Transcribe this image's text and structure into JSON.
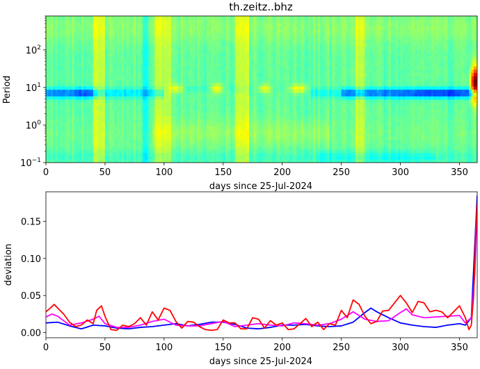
{
  "chart_data": [
    {
      "type": "heatmap",
      "title": "th.zeitz..bhz",
      "xlabel": "days since 25-Jul-2024",
      "ylabel": "Period",
      "xlim": [
        0,
        365
      ],
      "ylim": [
        0.1,
        800
      ],
      "y_scale": "log",
      "x_ticks": [
        0,
        50,
        100,
        150,
        200,
        250,
        300,
        350
      ],
      "y_ticks": [
        {
          "value": 0.1,
          "label": "10",
          "exp": "−1"
        },
        {
          "value": 1,
          "label": "10",
          "exp": "0"
        },
        {
          "value": 10,
          "label": "10",
          "exp": "1"
        },
        {
          "value": 100,
          "label": "10",
          "exp": "2"
        }
      ],
      "colormap": "jet",
      "features": [
        {
          "name": "low band",
          "period": 7,
          "days": [
            [
              0,
              45
            ],
            [
              250,
              365
            ]
          ],
          "level": "low"
        },
        {
          "name": "high bands",
          "period": 10,
          "days": [
            [
              105,
              115
            ],
            [
              140,
              150
            ],
            [
              180,
              190
            ],
            [
              205,
              220
            ]
          ],
          "level": "high"
        },
        {
          "name": "high spike",
          "period": 10,
          "days": [
            [
              360,
              365
            ]
          ],
          "level": "max"
        }
      ]
    },
    {
      "type": "line",
      "title": "",
      "xlabel": "days since 25-Jul-2024",
      "ylabel": "deviation",
      "xlim": [
        0,
        365
      ],
      "ylim": [
        -0.007,
        0.19
      ],
      "x_ticks": [
        0,
        50,
        100,
        150,
        200,
        250,
        300,
        350
      ],
      "y_ticks": [
        0.0,
        0.05,
        0.1,
        0.15
      ],
      "grid": false,
      "legend": "none",
      "series": [
        {
          "color": "#0000ff",
          "x": [
            0,
            10,
            20,
            30,
            40,
            50,
            60,
            70,
            80,
            90,
            100,
            110,
            120,
            130,
            140,
            150,
            160,
            170,
            180,
            190,
            200,
            210,
            220,
            230,
            240,
            250,
            260,
            270,
            275,
            280,
            290,
            300,
            310,
            320,
            330,
            340,
            350,
            355,
            360,
            363,
            365
          ],
          "y": [
            0.013,
            0.014,
            0.009,
            0.005,
            0.01,
            0.009,
            0.006,
            0.005,
            0.007,
            0.008,
            0.01,
            0.012,
            0.009,
            0.011,
            0.014,
            0.014,
            0.011,
            0.006,
            0.005,
            0.007,
            0.01,
            0.01,
            0.011,
            0.009,
            0.008,
            0.009,
            0.014,
            0.027,
            0.033,
            0.028,
            0.02,
            0.013,
            0.01,
            0.008,
            0.007,
            0.01,
            0.012,
            0.01,
            0.02,
            0.12,
            0.185
          ]
        },
        {
          "color": "#ff00ff",
          "x": [
            0,
            5,
            10,
            20,
            30,
            40,
            45,
            50,
            60,
            70,
            80,
            90,
            100,
            110,
            120,
            130,
            140,
            150,
            160,
            170,
            180,
            190,
            200,
            210,
            220,
            230,
            240,
            250,
            260,
            270,
            280,
            290,
            300,
            305,
            310,
            320,
            330,
            340,
            350,
            355,
            360,
            363,
            365
          ],
          "y": [
            0.021,
            0.025,
            0.022,
            0.01,
            0.013,
            0.018,
            0.022,
            0.012,
            0.007,
            0.007,
            0.01,
            0.015,
            0.018,
            0.01,
            0.009,
            0.009,
            0.012,
            0.015,
            0.008,
            0.01,
            0.012,
            0.01,
            0.009,
            0.013,
            0.012,
            0.01,
            0.012,
            0.018,
            0.028,
            0.018,
            0.015,
            0.016,
            0.027,
            0.032,
            0.024,
            0.02,
            0.021,
            0.022,
            0.023,
            0.013,
            0.02,
            0.08,
            0.17
          ]
        },
        {
          "color": "#ff0000",
          "x": [
            0,
            3,
            7,
            10,
            15,
            20,
            25,
            30,
            35,
            40,
            43,
            47,
            50,
            55,
            60,
            65,
            70,
            75,
            80,
            85,
            90,
            95,
            100,
            105,
            110,
            115,
            120,
            125,
            130,
            135,
            140,
            145,
            150,
            155,
            160,
            165,
            170,
            175,
            180,
            185,
            190,
            195,
            200,
            205,
            210,
            215,
            220,
            225,
            230,
            235,
            240,
            245,
            250,
            255,
            260,
            265,
            270,
            275,
            280,
            285,
            290,
            295,
            300,
            305,
            310,
            315,
            320,
            325,
            330,
            335,
            340,
            345,
            350,
            355,
            358,
            360,
            362,
            364,
            365
          ],
          "y": [
            0.028,
            0.032,
            0.038,
            0.033,
            0.025,
            0.014,
            0.008,
            0.01,
            0.017,
            0.012,
            0.03,
            0.036,
            0.022,
            0.004,
            0.003,
            0.01,
            0.008,
            0.012,
            0.02,
            0.01,
            0.028,
            0.017,
            0.033,
            0.03,
            0.015,
            0.006,
            0.015,
            0.014,
            0.008,
            0.004,
            0.003,
            0.004,
            0.017,
            0.013,
            0.013,
            0.005,
            0.005,
            0.02,
            0.018,
            0.006,
            0.016,
            0.01,
            0.013,
            0.004,
            0.005,
            0.012,
            0.019,
            0.008,
            0.014,
            0.004,
            0.012,
            0.01,
            0.03,
            0.02,
            0.044,
            0.038,
            0.022,
            0.012,
            0.015,
            0.029,
            0.03,
            0.04,
            0.05,
            0.04,
            0.027,
            0.042,
            0.04,
            0.028,
            0.03,
            0.028,
            0.02,
            0.028,
            0.036,
            0.02,
            0.004,
            0.01,
            0.05,
            0.15,
            0.175
          ]
        }
      ]
    }
  ]
}
